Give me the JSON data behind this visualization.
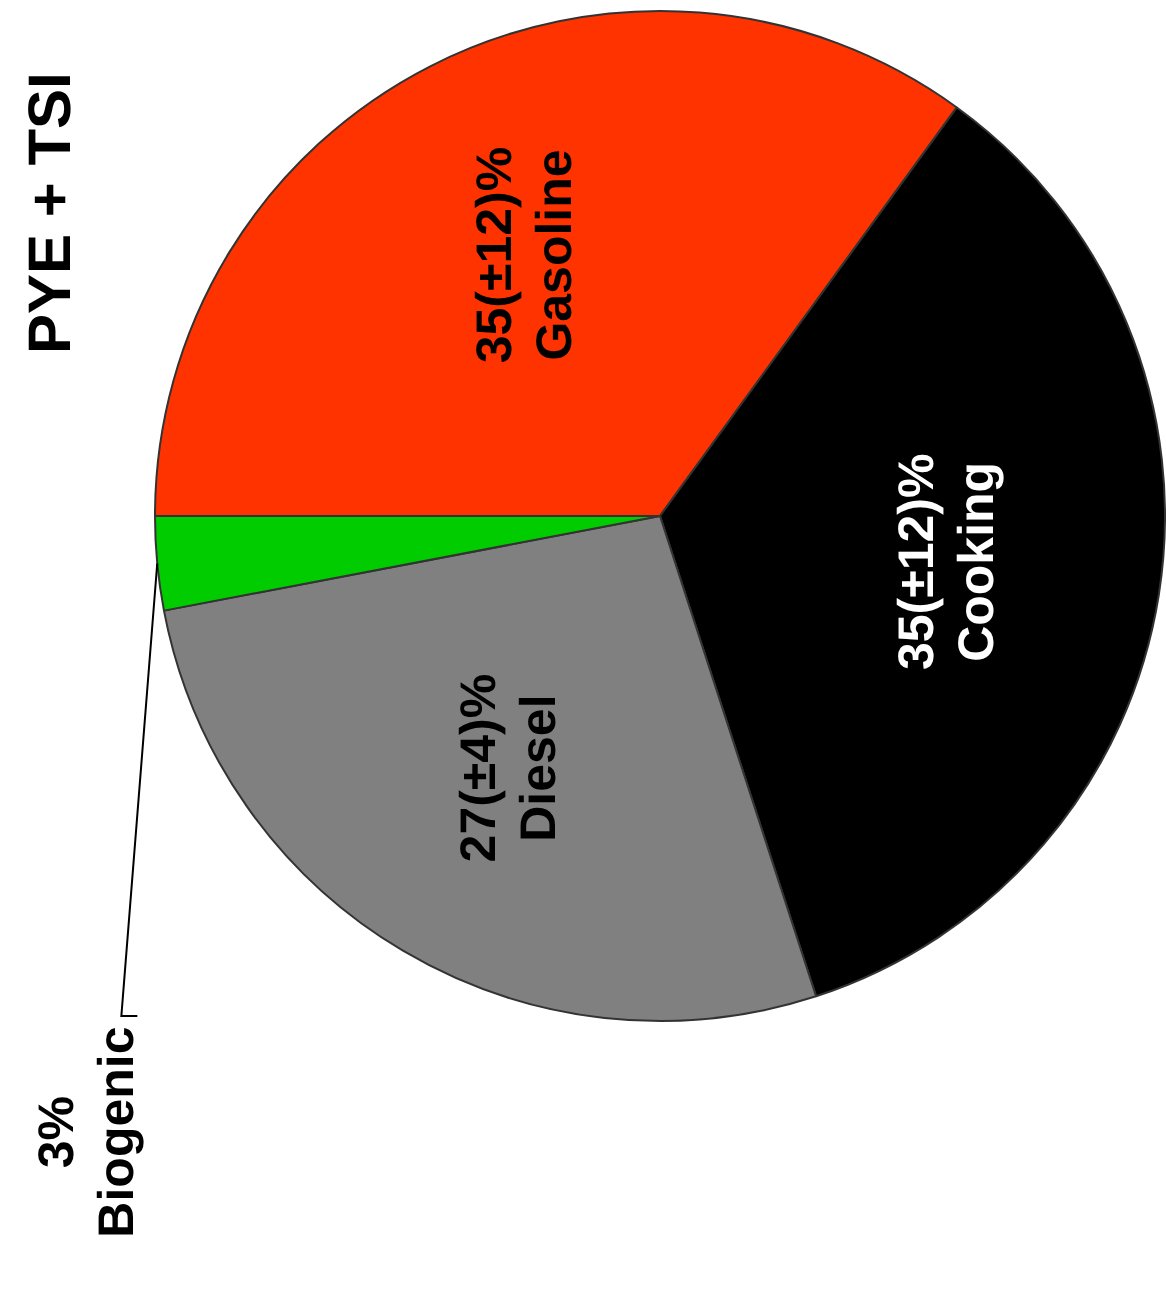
{
  "chart_data": {
    "type": "pie",
    "title": "PYE + TSI",
    "categories": [
      "Gasoline",
      "Cooking",
      "Diesel",
      "Biogenic"
    ],
    "values": [
      35,
      35,
      27,
      3
    ],
    "colors": [
      "#ff3300",
      "#000000",
      "#808080",
      "#00cc00"
    ],
    "value_labels": [
      "35(±12)%",
      "35(±12)%",
      "27(±4)%",
      "3%"
    ],
    "legend": false
  }
}
